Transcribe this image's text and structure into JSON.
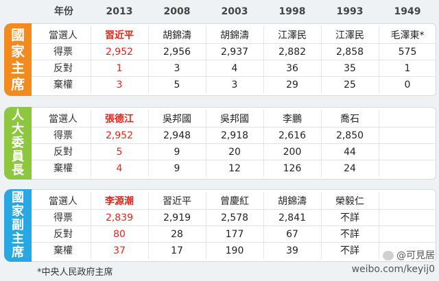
{
  "header": [
    "年份",
    "2013",
    "2008",
    "2003",
    "1998",
    "1993",
    "1949"
  ],
  "sections": [
    {
      "title_chars": [
        "國",
        "家",
        "主",
        "席"
      ],
      "color": "#f28b1f",
      "rows": [
        [
          "當選人",
          "習近平",
          "胡錦濤",
          "胡錦濤",
          "江澤民",
          "江澤民",
          "毛澤東*"
        ],
        [
          "得票",
          "2,952",
          "2,956",
          "2,937",
          "2,882",
          "2,858",
          "575"
        ],
        [
          "反對",
          "1",
          "3",
          "4",
          "36",
          "35",
          "1"
        ],
        [
          "棄權",
          "3",
          "5",
          "3",
          "29",
          "25",
          "0"
        ]
      ]
    },
    {
      "title_chars": [
        "人",
        "大",
        "委",
        "員",
        "長"
      ],
      "color": "#8dc63f",
      "rows": [
        [
          "當選人",
          "張德江",
          "吳邦國",
          "吳邦國",
          "李鵬",
          "喬石",
          ""
        ],
        [
          "得票",
          "2,952",
          "2,948",
          "2,918",
          "2,616",
          "2,850",
          ""
        ],
        [
          "反對",
          "5",
          "9",
          "20",
          "200",
          "44",
          ""
        ],
        [
          "棄權",
          "4",
          "9",
          "12",
          "126",
          "24",
          ""
        ]
      ]
    },
    {
      "title_chars": [
        "國",
        "家",
        "副",
        "主",
        "席"
      ],
      "color": "#29a7e1",
      "rows": [
        [
          "當選人",
          "李源潮",
          "習近平",
          "曾慶紅",
          "胡錦濤",
          "榮毅仁",
          ""
        ],
        [
          "得票",
          "2,839",
          "2,919",
          "2,578",
          "2,841",
          "不詳",
          ""
        ],
        [
          "反對",
          "80",
          "28",
          "177",
          "67",
          "不詳",
          ""
        ],
        [
          "棄權",
          "37",
          "17",
          "190",
          "39",
          "不詳",
          ""
        ]
      ]
    }
  ],
  "footnote": "*中央人民政府主席",
  "watermark": {
    "handle": "@可見居",
    "url": "weibo.com/keyij0"
  },
  "colors": {
    "highlight": "#e0261b"
  }
}
